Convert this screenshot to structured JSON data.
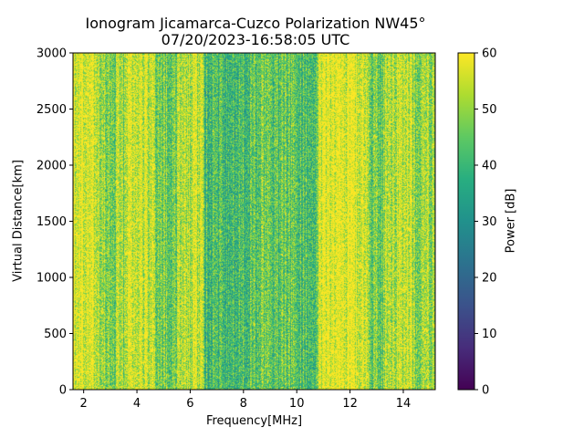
{
  "chart_data": {
    "type": "heatmap",
    "title": "Ionogram Jicamarca-Cuzco Polarization NW45°",
    "subtitle": "07/20/2023-16:58:05 UTC",
    "xlabel": "Frequency[MHz]",
    "ylabel": "Virtual Distance[km]",
    "xlim": [
      1.6,
      15.2
    ],
    "ylim": [
      0,
      3000
    ],
    "xticks": [
      2,
      4,
      6,
      8,
      10,
      12,
      14
    ],
    "yticks": [
      0,
      500,
      1000,
      1500,
      2000,
      2500,
      3000
    ],
    "colorbar": {
      "label": "Power [dB]",
      "range": [
        0,
        60
      ],
      "ticks": [
        0,
        10,
        20,
        30,
        40,
        50,
        60
      ],
      "colormap": "viridis"
    },
    "power_profile_by_frequency": [
      {
        "freq_range": [
          1.6,
          2.6
        ],
        "typical_power_db": 58
      },
      {
        "freq_range": [
          2.6,
          3.6
        ],
        "typical_power_db": 50
      },
      {
        "freq_range": [
          3.6,
          4.7
        ],
        "typical_power_db": 56
      },
      {
        "freq_range": [
          4.7,
          5.5
        ],
        "typical_power_db": 47
      },
      {
        "freq_range": [
          5.5,
          6.5
        ],
        "typical_power_db": 55
      },
      {
        "freq_range": [
          6.5,
          8.3
        ],
        "typical_power_db": 42
      },
      {
        "freq_range": [
          8.3,
          9.4
        ],
        "typical_power_db": 45
      },
      {
        "freq_range": [
          9.4,
          10.8
        ],
        "typical_power_db": 44
      },
      {
        "freq_range": [
          10.8,
          12.7
        ],
        "typical_power_db": 59
      },
      {
        "freq_range": [
          12.7,
          13.3
        ],
        "typical_power_db": 47
      },
      {
        "freq_range": [
          13.3,
          14.3
        ],
        "typical_power_db": 55
      },
      {
        "freq_range": [
          14.3,
          15.2
        ],
        "typical_power_db": 50
      }
    ]
  }
}
